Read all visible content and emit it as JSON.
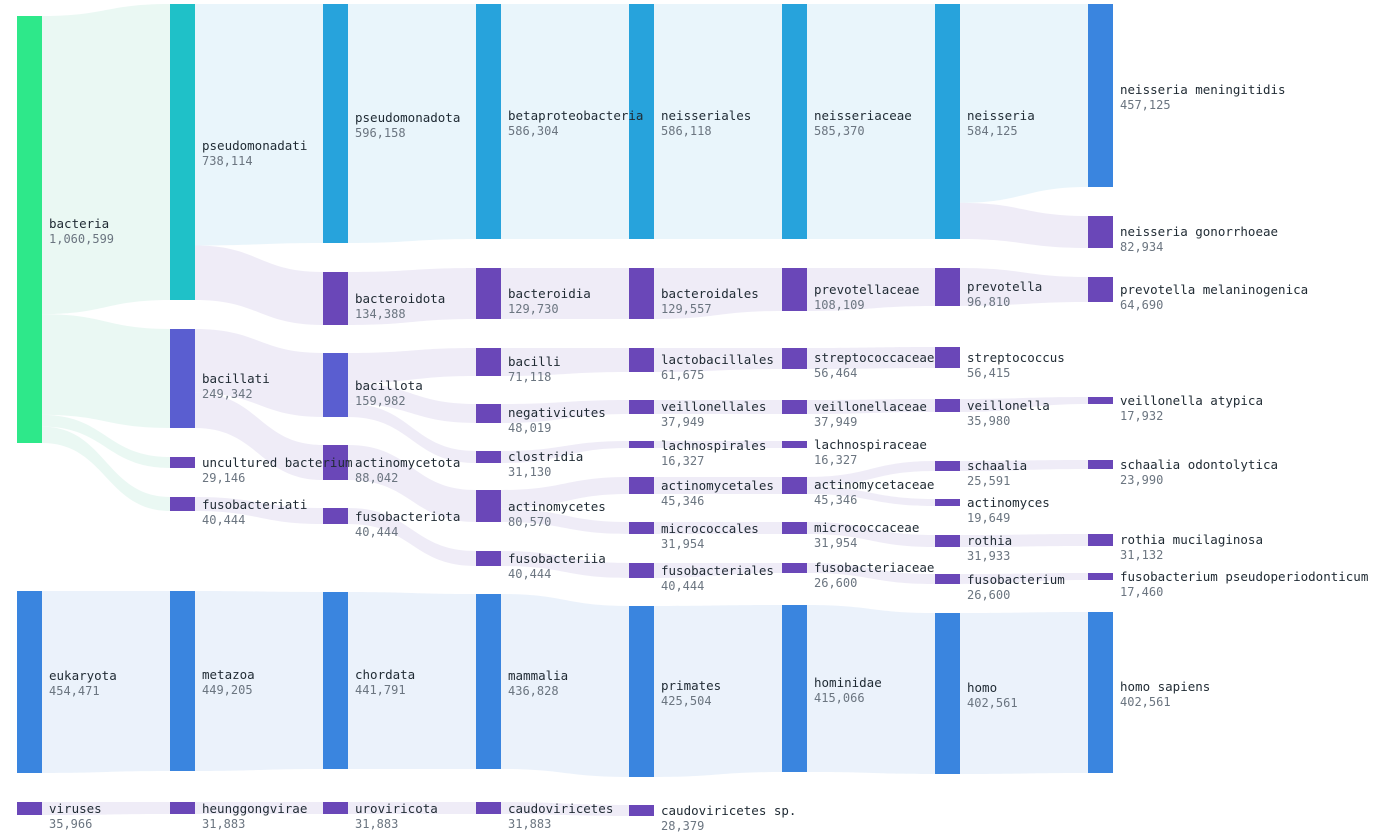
{
  "colors": {
    "bacteria": "#2ee88a",
    "domain_blue": "#3a85df",
    "teal": "#1fc1c8",
    "sky": "#27a3dc",
    "indigo": "#5a5ed0",
    "purple": "#6a47b8",
    "link_bacteria": "#e9f8f2",
    "link_blue": "#eaf1fb",
    "link_sky": "#e8f4fb",
    "link_purple": "#eeebf7"
  },
  "nodes": [
    {
      "id": "bacteria",
      "name": "bacteria",
      "value": "1,060,599",
      "color": "bacteria"
    },
    {
      "id": "eukaryota",
      "name": "eukaryota",
      "value": "454,471",
      "color": "domain_blue"
    },
    {
      "id": "viruses",
      "name": "viruses",
      "value": "35,966",
      "color": "purple"
    },
    {
      "id": "pseudomonadati",
      "name": "pseudomonadati",
      "value": "738,114",
      "color": "teal"
    },
    {
      "id": "bacillati",
      "name": "bacillati",
      "value": "249,342",
      "color": "indigo"
    },
    {
      "id": "uncultured",
      "name": "uncultured bacterium",
      "value": "29,146",
      "color": "purple"
    },
    {
      "id": "fusobacteriati",
      "name": "fusobacteriati",
      "value": "40,444",
      "color": "purple"
    },
    {
      "id": "metazoa",
      "name": "metazoa",
      "value": "449,205",
      "color": "domain_blue"
    },
    {
      "id": "heunggongvirae",
      "name": "heunggongvirae",
      "value": "31,883",
      "color": "purple"
    },
    {
      "id": "pseudomonadota",
      "name": "pseudomonadota",
      "value": "596,158",
      "color": "sky"
    },
    {
      "id": "bacteroidota",
      "name": "bacteroidota",
      "value": "134,388",
      "color": "purple"
    },
    {
      "id": "bacillota",
      "name": "bacillota",
      "value": "159,982",
      "color": "indigo"
    },
    {
      "id": "actinomycetota",
      "name": "actinomycetota",
      "value": "88,042",
      "color": "purple"
    },
    {
      "id": "fusobacteriota",
      "name": "fusobacteriota",
      "value": "40,444",
      "color": "purple"
    },
    {
      "id": "chordata",
      "name": "chordata",
      "value": "441,791",
      "color": "domain_blue"
    },
    {
      "id": "uroviricota",
      "name": "uroviricota",
      "value": "31,883",
      "color": "purple"
    },
    {
      "id": "betaproteobacteria",
      "name": "betaproteobacteria",
      "value": "586,304",
      "color": "sky"
    },
    {
      "id": "bacteroidia",
      "name": "bacteroidia",
      "value": "129,730",
      "color": "purple"
    },
    {
      "id": "bacilli",
      "name": "bacilli",
      "value": "71,118",
      "color": "purple"
    },
    {
      "id": "negativicutes",
      "name": "negativicutes",
      "value": "48,019",
      "color": "purple"
    },
    {
      "id": "clostridia",
      "name": "clostridia",
      "value": "31,130",
      "color": "purple"
    },
    {
      "id": "actinomycetes",
      "name": "actinomycetes",
      "value": "80,570",
      "color": "purple"
    },
    {
      "id": "fusobacteriia",
      "name": "fusobacteriia",
      "value": "40,444",
      "color": "purple"
    },
    {
      "id": "mammalia",
      "name": "mammalia",
      "value": "436,828",
      "color": "domain_blue"
    },
    {
      "id": "caudoviricetes",
      "name": "caudoviricetes",
      "value": "31,883",
      "color": "purple"
    },
    {
      "id": "neisseriales",
      "name": "neisseriales",
      "value": "586,118",
      "color": "sky"
    },
    {
      "id": "bacteroidales",
      "name": "bacteroidales",
      "value": "129,557",
      "color": "purple"
    },
    {
      "id": "lactobacillales",
      "name": "lactobacillales",
      "value": "61,675",
      "color": "purple"
    },
    {
      "id": "veillonellales",
      "name": "veillonellales",
      "value": "37,949",
      "color": "purple"
    },
    {
      "id": "lachnospirales",
      "name": "lachnospirales",
      "value": "16,327",
      "color": "purple"
    },
    {
      "id": "actinomycetales",
      "name": "actinomycetales",
      "value": "45,346",
      "color": "purple"
    },
    {
      "id": "micrococcales",
      "name": "micrococcales",
      "value": "31,954",
      "color": "purple"
    },
    {
      "id": "fusobacteriales",
      "name": "fusobacteriales",
      "value": "40,444",
      "color": "purple"
    },
    {
      "id": "primates",
      "name": "primates",
      "value": "425,504",
      "color": "domain_blue"
    },
    {
      "id": "caudoviricetes_sp",
      "name": "caudoviricetes sp.",
      "value": "28,379",
      "color": "purple"
    },
    {
      "id": "neisseriaceae",
      "name": "neisseriaceae",
      "value": "585,370",
      "color": "sky"
    },
    {
      "id": "prevotellaceae",
      "name": "prevotellaceae",
      "value": "108,109",
      "color": "purple"
    },
    {
      "id": "streptococcaceae",
      "name": "streptococcaceae",
      "value": "56,464",
      "color": "purple"
    },
    {
      "id": "veillonellaceae",
      "name": "veillonellaceae",
      "value": "37,949",
      "color": "purple"
    },
    {
      "id": "lachnospiraceae",
      "name": "lachnospiraceae",
      "value": "16,327",
      "color": "purple"
    },
    {
      "id": "actinomycetaceae",
      "name": "actinomycetaceae",
      "value": "45,346",
      "color": "purple"
    },
    {
      "id": "micrococcaceae",
      "name": "micrococcaceae",
      "value": "31,954",
      "color": "purple"
    },
    {
      "id": "fusobacteriaceae",
      "name": "fusobacteriaceae",
      "value": "26,600",
      "color": "purple"
    },
    {
      "id": "hominidae",
      "name": "hominidae",
      "value": "415,066",
      "color": "domain_blue"
    },
    {
      "id": "neisseria",
      "name": "neisseria",
      "value": "584,125",
      "color": "sky"
    },
    {
      "id": "prevotella",
      "name": "prevotella",
      "value": "96,810",
      "color": "purple"
    },
    {
      "id": "streptococcus",
      "name": "streptococcus",
      "value": "56,415",
      "color": "purple"
    },
    {
      "id": "veillonella",
      "name": "veillonella",
      "value": "35,980",
      "color": "purple"
    },
    {
      "id": "schaalia",
      "name": "schaalia",
      "value": "25,591",
      "color": "purple"
    },
    {
      "id": "actinomyces",
      "name": "actinomyces",
      "value": "19,649",
      "color": "purple"
    },
    {
      "id": "rothia",
      "name": "rothia",
      "value": "31,933",
      "color": "purple"
    },
    {
      "id": "fusobacterium",
      "name": "fusobacterium",
      "value": "26,600",
      "color": "purple"
    },
    {
      "id": "homo",
      "name": "homo",
      "value": "402,561",
      "color": "domain_blue"
    },
    {
      "id": "n_meningitidis",
      "name": "neisseria meningitidis",
      "value": "457,125",
      "color": "domain_blue"
    },
    {
      "id": "n_gonorrhoeae",
      "name": "neisseria gonorrhoeae",
      "value": "82,934",
      "color": "purple"
    },
    {
      "id": "p_melaninogenica",
      "name": "prevotella melaninogenica",
      "value": "64,690",
      "color": "purple"
    },
    {
      "id": "v_atypica",
      "name": "veillonella atypica",
      "value": "17,932",
      "color": "purple"
    },
    {
      "id": "s_odontolytica",
      "name": "schaalia odontolytica",
      "value": "23,990",
      "color": "purple"
    },
    {
      "id": "r_mucilaginosa",
      "name": "rothia mucilaginosa",
      "value": "31,132",
      "color": "purple"
    },
    {
      "id": "f_pseudoperiodonticum",
      "name": "fusobacterium pseudoperiodonticum",
      "value": "17,460",
      "color": "purple"
    },
    {
      "id": "homo_sapiens",
      "name": "homo sapiens",
      "value": "402,561",
      "color": "domain_blue"
    }
  ],
  "links": [
    {
      "source": "bacteria",
      "target": "pseudomonadati",
      "value": 738114,
      "color": "link_bacteria"
    },
    {
      "source": "bacteria",
      "target": "bacillati",
      "value": 249342,
      "color": "link_bacteria"
    },
    {
      "source": "bacteria",
      "target": "uncultured",
      "value": 29146,
      "color": "link_bacteria"
    },
    {
      "source": "bacteria",
      "target": "fusobacteriati",
      "value": 40444,
      "color": "link_bacteria"
    },
    {
      "source": "eukaryota",
      "target": "metazoa",
      "value": 449205,
      "color": "link_blue"
    },
    {
      "source": "viruses",
      "target": "heunggongvirae",
      "value": 31883,
      "color": "link_purple"
    },
    {
      "source": "pseudomonadati",
      "target": "pseudomonadota",
      "value": 596158,
      "color": "link_sky"
    },
    {
      "source": "pseudomonadati",
      "target": "bacteroidota",
      "value": 134388,
      "color": "link_purple"
    },
    {
      "source": "bacillati",
      "target": "bacillota",
      "value": 159982,
      "color": "link_purple"
    },
    {
      "source": "bacillati",
      "target": "actinomycetota",
      "value": 88042,
      "color": "link_purple"
    },
    {
      "source": "fusobacteriati",
      "target": "fusobacteriota",
      "value": 40444,
      "color": "link_purple"
    },
    {
      "source": "metazoa",
      "target": "chordata",
      "value": 441791,
      "color": "link_blue"
    },
    {
      "source": "heunggongvirae",
      "target": "uroviricota",
      "value": 31883,
      "color": "link_purple"
    },
    {
      "source": "pseudomonadota",
      "target": "betaproteobacteria",
      "value": 586304,
      "color": "link_sky"
    },
    {
      "source": "bacteroidota",
      "target": "bacteroidia",
      "value": 129730,
      "color": "link_purple"
    },
    {
      "source": "bacillota",
      "target": "bacilli",
      "value": 71118,
      "color": "link_purple"
    },
    {
      "source": "bacillota",
      "target": "negativicutes",
      "value": 48019,
      "color": "link_purple"
    },
    {
      "source": "bacillota",
      "target": "clostridia",
      "value": 31130,
      "color": "link_purple"
    },
    {
      "source": "actinomycetota",
      "target": "actinomycetes",
      "value": 80570,
      "color": "link_purple"
    },
    {
      "source": "fusobacteriota",
      "target": "fusobacteriia",
      "value": 40444,
      "color": "link_purple"
    },
    {
      "source": "chordata",
      "target": "mammalia",
      "value": 436828,
      "color": "link_blue"
    },
    {
      "source": "uroviricota",
      "target": "caudoviricetes",
      "value": 31883,
      "color": "link_purple"
    },
    {
      "source": "betaproteobacteria",
      "target": "neisseriales",
      "value": 586118,
      "color": "link_sky"
    },
    {
      "source": "bacteroidia",
      "target": "bacteroidales",
      "value": 129557,
      "color": "link_purple"
    },
    {
      "source": "bacilli",
      "target": "lactobacillales",
      "value": 61675,
      "color": "link_purple"
    },
    {
      "source": "negativicutes",
      "target": "veillonellales",
      "value": 37949,
      "color": "link_purple"
    },
    {
      "source": "clostridia",
      "target": "lachnospirales",
      "value": 16327,
      "color": "link_purple"
    },
    {
      "source": "actinomycetes",
      "target": "actinomycetales",
      "value": 45346,
      "color": "link_purple"
    },
    {
      "source": "actinomycetes",
      "target": "micrococcales",
      "value": 31954,
      "color": "link_purple"
    },
    {
      "source": "fusobacteriia",
      "target": "fusobacteriales",
      "value": 40444,
      "color": "link_purple"
    },
    {
      "source": "mammalia",
      "target": "primates",
      "value": 425504,
      "color": "link_blue"
    },
    {
      "source": "caudoviricetes",
      "target": "caudoviricetes_sp",
      "value": 28379,
      "color": "link_purple"
    },
    {
      "source": "neisseriales",
      "target": "neisseriaceae",
      "value": 585370,
      "color": "link_sky"
    },
    {
      "source": "bacteroidales",
      "target": "prevotellaceae",
      "value": 108109,
      "color": "link_purple"
    },
    {
      "source": "lactobacillales",
      "target": "streptococcaceae",
      "value": 56464,
      "color": "link_purple"
    },
    {
      "source": "veillonellales",
      "target": "veillonellaceae",
      "value": 37949,
      "color": "link_purple"
    },
    {
      "source": "lachnospirales",
      "target": "lachnospiraceae",
      "value": 16327,
      "color": "link_purple"
    },
    {
      "source": "actinomycetales",
      "target": "actinomycetaceae",
      "value": 45346,
      "color": "link_purple"
    },
    {
      "source": "micrococcales",
      "target": "micrococcaceae",
      "value": 31954,
      "color": "link_purple"
    },
    {
      "source": "fusobacteriales",
      "target": "fusobacteriaceae",
      "value": 26600,
      "color": "link_purple"
    },
    {
      "source": "primates",
      "target": "hominidae",
      "value": 415066,
      "color": "link_blue"
    },
    {
      "source": "neisseriaceae",
      "target": "neisseria",
      "value": 584125,
      "color": "link_sky"
    },
    {
      "source": "prevotellaceae",
      "target": "prevotella",
      "value": 96810,
      "color": "link_purple"
    },
    {
      "source": "streptococcaceae",
      "target": "streptococcus",
      "value": 56415,
      "color": "link_purple"
    },
    {
      "source": "veillonellaceae",
      "target": "veillonella",
      "value": 35980,
      "color": "link_purple"
    },
    {
      "source": "actinomycetaceae",
      "target": "schaalia",
      "value": 25591,
      "color": "link_purple"
    },
    {
      "source": "actinomycetaceae",
      "target": "actinomyces",
      "value": 19649,
      "color": "link_purple"
    },
    {
      "source": "micrococcaceae",
      "target": "rothia",
      "value": 31933,
      "color": "link_purple"
    },
    {
      "source": "fusobacteriaceae",
      "target": "fusobacterium",
      "value": 26600,
      "color": "link_purple"
    },
    {
      "source": "hominidae",
      "target": "homo",
      "value": 402561,
      "color": "link_blue"
    },
    {
      "source": "neisseria",
      "target": "n_meningitidis",
      "value": 457125,
      "color": "link_sky"
    },
    {
      "source": "neisseria",
      "target": "n_gonorrhoeae",
      "value": 82934,
      "color": "link_purple"
    },
    {
      "source": "prevotella",
      "target": "p_melaninogenica",
      "value": 64690,
      "color": "link_purple"
    },
    {
      "source": "veillonella",
      "target": "v_atypica",
      "value": 17932,
      "color": "link_purple"
    },
    {
      "source": "schaalia",
      "target": "s_odontolytica",
      "value": 23990,
      "color": "link_purple"
    },
    {
      "source": "rothia",
      "target": "r_mucilaginosa",
      "value": 31132,
      "color": "link_purple"
    },
    {
      "source": "fusobacterium",
      "target": "f_pseudoperiodonticum",
      "value": 17460,
      "color": "link_purple"
    },
    {
      "source": "homo",
      "target": "homo_sapiens",
      "value": 402561,
      "color": "link_blue"
    }
  ]
}
